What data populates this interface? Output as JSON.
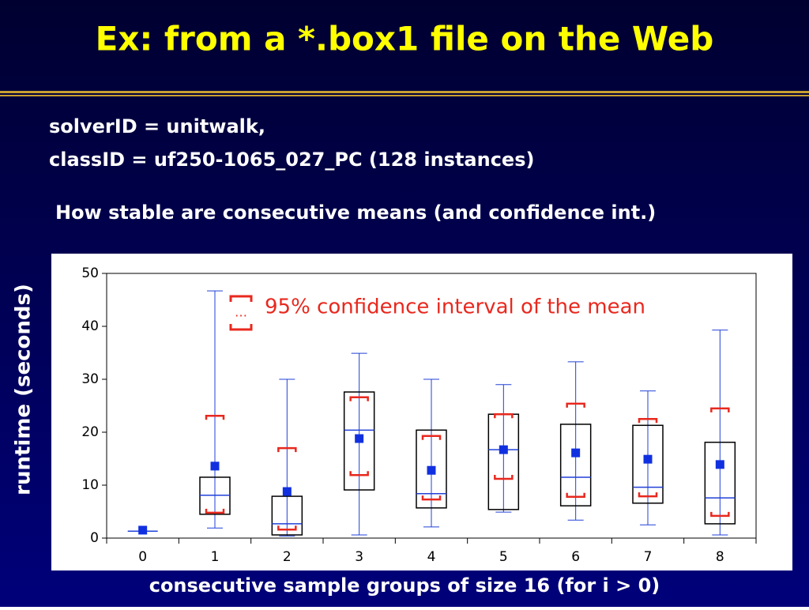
{
  "title": "Ex: from a *.box1 file on the Web",
  "info_lines": [
    "solverID = unitwalk,",
    "classID = uf250-1065_027_PC (128 instances)"
  ],
  "question": "How stable are consecutive means (and confidence int.)",
  "chart_data": {
    "type": "box",
    "x_label": "consecutive sample groups of size 16 (for i > 0)",
    "y_label": "runtime (seconds)",
    "annotation": {
      "symbol": "…",
      "text": "95% confidence interval of the mean"
    },
    "categories": [
      "0",
      "1",
      "2",
      "3",
      "4",
      "5",
      "6",
      "7",
      "8"
    ],
    "whisker_low": [
      null,
      1.9,
      0.4,
      0.6,
      2.1,
      4.9,
      3.4,
      2.5,
      0.6
    ],
    "whisker_high": [
      null,
      46.7,
      30,
      34.9,
      30,
      29,
      33.3,
      27.8,
      39.3
    ],
    "q1": [
      null,
      4.5,
      0.6,
      9.1,
      5.7,
      5.4,
      6.1,
      6.6,
      2.7
    ],
    "q3": [
      null,
      11.5,
      7.9,
      27.6,
      20.4,
      23.4,
      21.5,
      21.3,
      18.1
    ],
    "median": [
      1.3,
      8.1,
      2.7,
      20.4,
      8.4,
      16.7,
      11.5,
      9.6,
      7.6
    ],
    "mean": [
      1.5,
      13.6,
      8.8,
      18.8,
      12.8,
      16.7,
      16.1,
      14.9,
      13.9
    ],
    "ci_low": [
      null,
      4.8,
      1.6,
      11.9,
      7.3,
      11.2,
      7.8,
      7.9,
      4.2
    ],
    "ci_high": [
      null,
      23.1,
      17,
      26.6,
      19.3,
      23.4,
      25.4,
      22.5,
      24.5
    ],
    "ylim": [
      0,
      50
    ],
    "yticks": [
      0,
      10,
      20,
      30,
      40,
      50
    ],
    "box_color": "#000000",
    "whisker_color": "#2040d8",
    "mean_color": "#1030e0",
    "ci_color": "#e8281e"
  }
}
